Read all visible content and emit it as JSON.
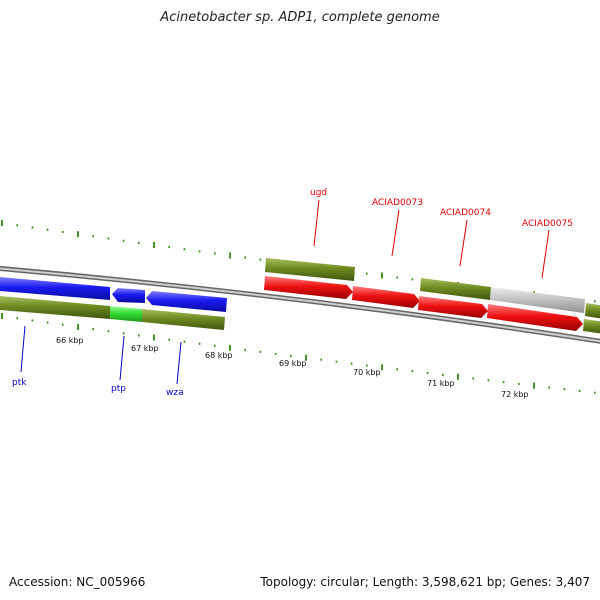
{
  "title": "Acinetobacter sp. ADP1, complete genome",
  "footer": {
    "accession": "Accession: NC_005966",
    "stats": "Topology: circular; Length: 3,598,621 bp; Genes: 3,407"
  },
  "colors": {
    "blue": "#1515ee",
    "red": "#ee1111",
    "olive": "#6f8a1f",
    "green": "#33dd33",
    "gray": "#c4c4c4",
    "tick": "#2a8a10",
    "backbone": "#8a8a8a"
  },
  "kbp_labels": [
    "66 kbp",
    "67 kbp",
    "68 kbp",
    "69 kbp",
    "70 kbp",
    "71 kbp",
    "72 kbp"
  ],
  "gene_labels": {
    "ugd": "ugd",
    "aciad0073": "ACIAD0073",
    "aciad0074": "ACIAD0074",
    "aciad0075": "ACIAD0075",
    "ptk": "ptk",
    "ptp": "ptp",
    "wza": "wza"
  }
}
